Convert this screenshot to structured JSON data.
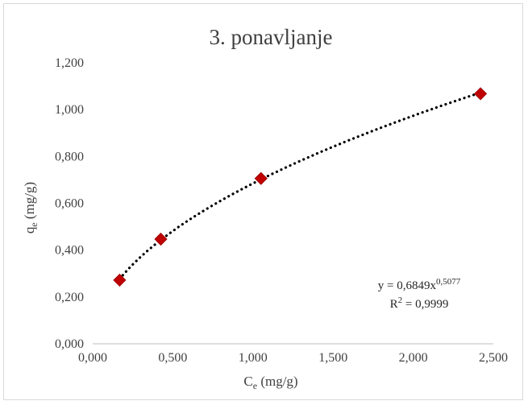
{
  "chart_data": {
    "type": "scatter",
    "title": "3. ponavljanje",
    "xlabel": {
      "main": "C",
      "sub": "e",
      "unit": " (mg/g)"
    },
    "ylabel": {
      "main": "q",
      "sub": "e",
      "unit": " (mg/g)"
    },
    "xlim": [
      0,
      2.5
    ],
    "ylim": [
      0,
      1.2
    ],
    "xticks": [
      0,
      0.5,
      1,
      1.5,
      2,
      2.5
    ],
    "yticks": [
      0,
      0.2,
      0.4,
      0.6,
      0.8,
      1.0,
      1.2
    ],
    "xtick_labels": [
      "0,000",
      "0,500",
      "1,000",
      "1,500",
      "2,000",
      "2,500"
    ],
    "ytick_labels": [
      "0,000",
      "0,200",
      "0,400",
      "0,600",
      "0,800",
      "1,000",
      "1,200"
    ],
    "grid": false,
    "series": [
      {
        "marker": "diamond",
        "color": "#c00000",
        "x": [
          0.168,
          0.425,
          1.05,
          2.42
        ],
        "y": [
          0.272,
          0.447,
          0.706,
          1.068
        ]
      }
    ],
    "trendline": {
      "type": "power",
      "a": 0.6849,
      "b": 0.5077,
      "style": "dotted",
      "color": "#000000",
      "equation": {
        "prefix": "y = 0,6849x",
        "exponent": "0,5077"
      },
      "r2": {
        "prefix": "R",
        "exponent": "2",
        "value": " = 0,9999"
      }
    }
  }
}
